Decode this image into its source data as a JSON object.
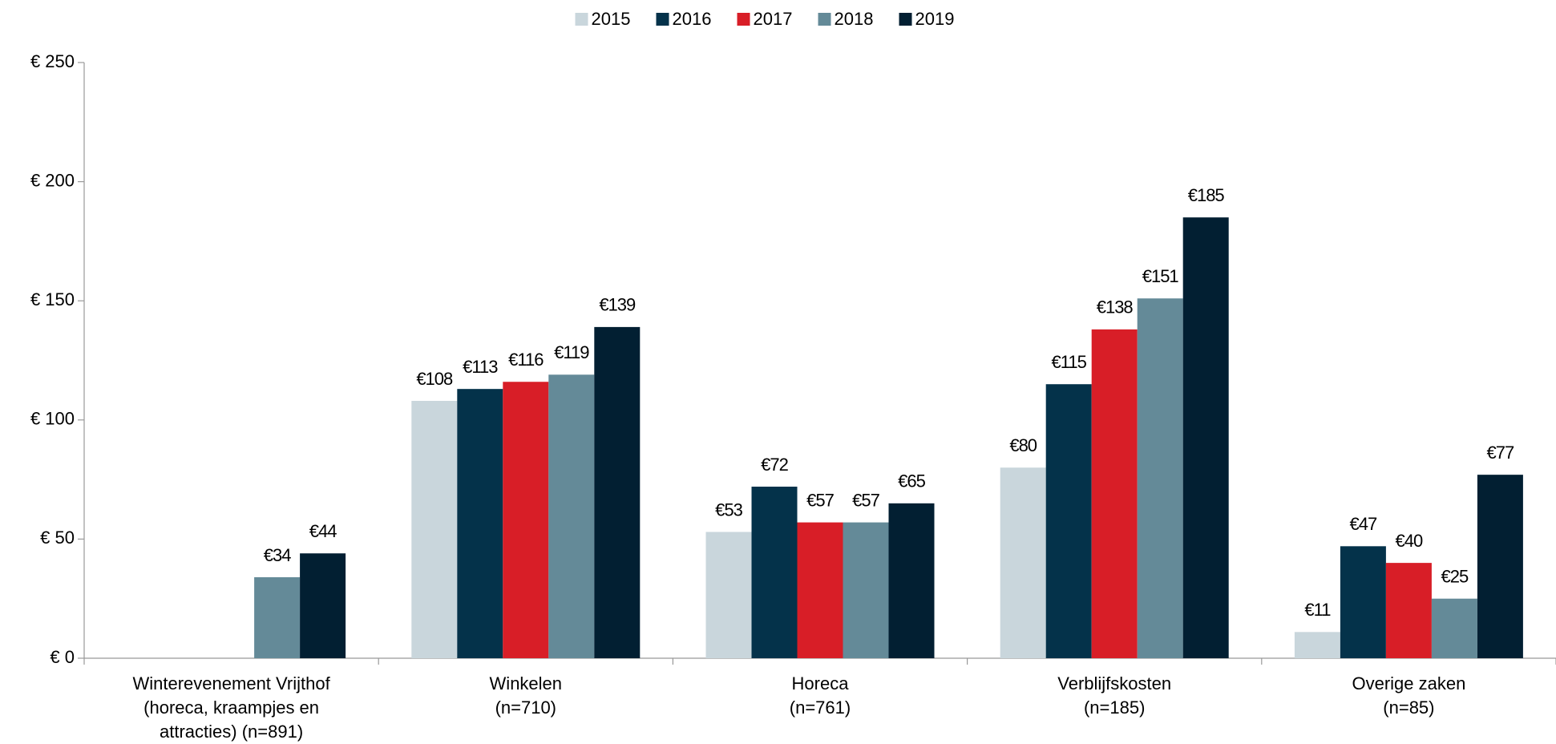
{
  "chart_data": {
    "type": "bar",
    "categories": [
      [
        "Winterevenement Vrijthof",
        "(horeca, kraampjes en",
        "attracties) (n=891)"
      ],
      [
        "Winkelen",
        "(n=710)"
      ],
      [
        "Horeca",
        "(n=761)"
      ],
      [
        "Verblijfskosten",
        "(n=185)"
      ],
      [
        "Overige zaken",
        "(n=85)"
      ]
    ],
    "series": [
      {
        "name": "2015",
        "color": "#c9d6dc",
        "values": [
          null,
          108,
          53,
          80,
          11
        ],
        "value_labels": [
          null,
          "€108",
          "€53",
          "€80",
          "€11"
        ]
      },
      {
        "name": "2016",
        "color": "#04324a",
        "values": [
          null,
          113,
          72,
          115,
          47
        ],
        "value_labels": [
          null,
          "€113",
          "€72",
          "€115",
          "€47"
        ]
      },
      {
        "name": "2017",
        "color": "#d81e27",
        "values": [
          null,
          116,
          57,
          138,
          40
        ],
        "value_labels": [
          null,
          "€116",
          "€57",
          "€138",
          "€40"
        ]
      },
      {
        "name": "2018",
        "color": "#648a98",
        "values": [
          34,
          119,
          57,
          151,
          25
        ],
        "value_labels": [
          "€34",
          "€119",
          "€57",
          "€151",
          "€25"
        ]
      },
      {
        "name": "2019",
        "color": "#021f32",
        "values": [
          44,
          139,
          65,
          185,
          77
        ],
        "value_labels": [
          "€44",
          "€139",
          "€65",
          "€185",
          "€77"
        ]
      }
    ],
    "ylim": [
      0,
      250
    ],
    "yticks": [
      {
        "value": 0,
        "label": "€ 0"
      },
      {
        "value": 50,
        "label": "€ 50"
      },
      {
        "value": 100,
        "label": "€ 100"
      },
      {
        "value": 150,
        "label": "€ 150"
      },
      {
        "value": 200,
        "label": "€ 200"
      },
      {
        "value": 250,
        "label": "€ 250"
      }
    ],
    "legend": "top"
  }
}
